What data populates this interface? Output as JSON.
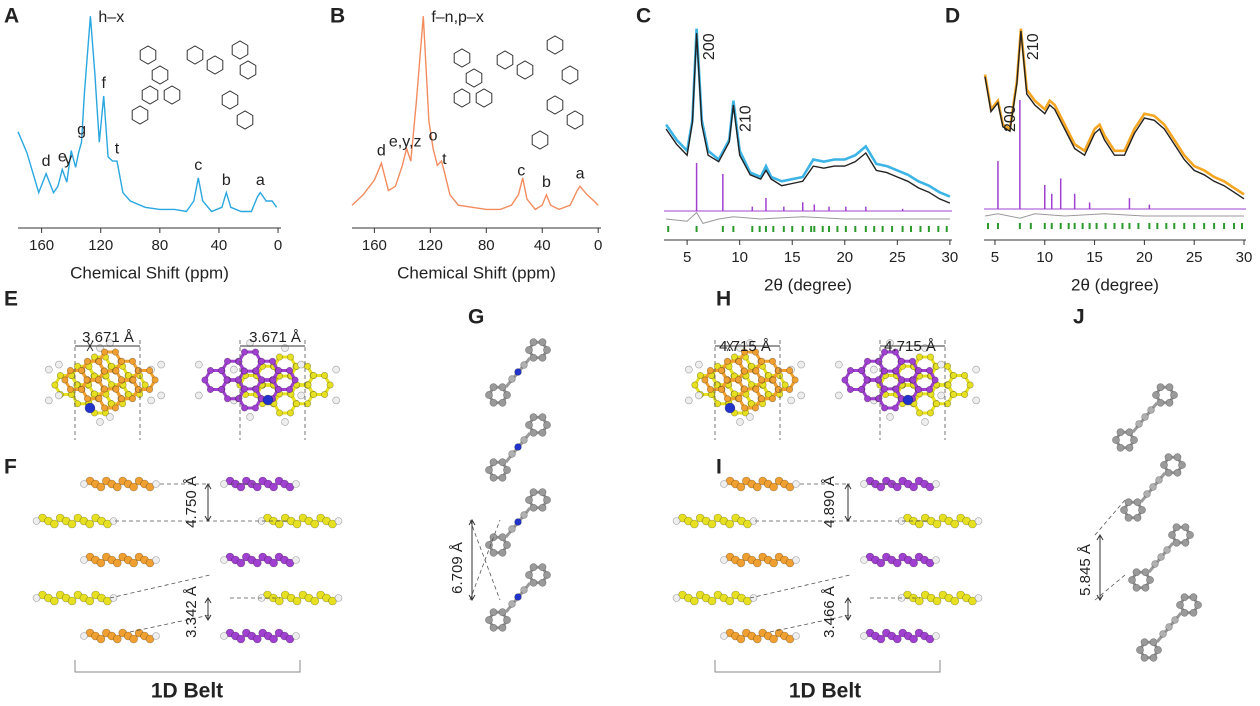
{
  "chart_data": [
    {
      "type": "line",
      "panel": "A",
      "xlabel": "Chemical Shift (ppm)",
      "xlim": [
        176,
        -2
      ],
      "xticks": [
        160,
        120,
        80,
        40,
        0
      ],
      "ylim": [
        0,
        100
      ],
      "series": [
        {
          "color": "#2aa7df",
          "x": [
            176,
            170,
            162,
            157,
            152,
            149,
            146,
            143,
            140,
            137,
            135,
            133,
            131,
            127,
            124,
            121,
            118,
            115,
            112,
            109,
            105,
            100,
            90,
            80,
            70,
            62,
            57,
            54,
            51,
            45,
            38,
            35,
            32,
            25,
            18,
            14,
            12,
            8,
            4,
            1
          ],
          "values": [
            43,
            33,
            14,
            23,
            14,
            17,
            25,
            19,
            34,
            26,
            33,
            38,
            62,
            98,
            71,
            38,
            60,
            31,
            29,
            29,
            14,
            10,
            7,
            6,
            6,
            5,
            10,
            21,
            10,
            5,
            7,
            14,
            7,
            5,
            5,
            12,
            14,
            10,
            10,
            7
          ]
        }
      ],
      "annotations": [
        {
          "text": "d",
          "x": 157
        },
        {
          "text": "e",
          "x": 146
        },
        {
          "text": "y",
          "x": 142
        },
        {
          "text": "g",
          "x": 133
        },
        {
          "text": "h–x",
          "x": 127
        },
        {
          "text": "f",
          "x": 118
        },
        {
          "text": "t",
          "x": 109
        },
        {
          "text": "c",
          "x": 54
        },
        {
          "text": "b",
          "x": 35
        },
        {
          "text": "a",
          "x": 12
        }
      ]
    },
    {
      "type": "line",
      "panel": "B",
      "xlabel": "Chemical Shift (ppm)",
      "xlim": [
        176,
        -2
      ],
      "xticks": [
        160,
        120,
        80,
        40,
        0
      ],
      "ylim": [
        0,
        100
      ],
      "series": [
        {
          "color": "#f28c5f",
          "x": [
            176,
            168,
            160,
            155,
            150,
            145,
            140,
            137,
            134,
            130,
            125,
            121,
            118,
            115,
            112,
            110,
            106,
            100,
            90,
            80,
            70,
            62,
            57,
            54,
            51,
            45,
            40,
            37,
            34,
            28,
            20,
            15,
            13,
            8,
            3,
            0
          ],
          "values": [
            8,
            13,
            20,
            28,
            15,
            17,
            27,
            35,
            29,
            57,
            98,
            48,
            35,
            27,
            29,
            24,
            13,
            8,
            7,
            6,
            6,
            8,
            13,
            21,
            11,
            6,
            8,
            13,
            8,
            6,
            8,
            15,
            17,
            13,
            10,
            8
          ]
        }
      ],
      "annotations": [
        {
          "text": "d",
          "x": 155
        },
        {
          "text": "e,y,z",
          "x": 138
        },
        {
          "text": "f–n,p–x",
          "x": 125
        },
        {
          "text": "o",
          "x": 118
        },
        {
          "text": "t",
          "x": 110
        },
        {
          "text": "c",
          "x": 55
        },
        {
          "text": "b",
          "x": 37
        },
        {
          "text": "a",
          "x": 13
        }
      ]
    },
    {
      "type": "line",
      "panel": "C",
      "xlabel": "2θ (degree)",
      "xlim": [
        2.8,
        30.2
      ],
      "xticks": [
        5,
        10,
        15,
        20,
        25,
        30
      ],
      "ylim": [
        0,
        100
      ],
      "series": [
        {
          "color": "#3cb4e5",
          "x": [
            3,
            4,
            5,
            5.5,
            5.9,
            6.4,
            7,
            8,
            9,
            9.4,
            10,
            11,
            12,
            12.5,
            13,
            14,
            15,
            16,
            17,
            18,
            19,
            20,
            21,
            22,
            23,
            24,
            25,
            26,
            27,
            28,
            29,
            30
          ],
          "values": [
            52,
            45,
            40,
            54,
            96,
            54,
            40,
            36,
            45,
            63,
            40,
            30,
            28,
            33,
            28,
            26,
            27,
            28,
            36,
            35,
            36,
            36,
            38,
            42,
            34,
            33,
            31,
            29,
            26,
            24,
            21,
            19
          ]
        },
        {
          "color": "#222222",
          "x": [
            3,
            4,
            5,
            5.5,
            5.9,
            6.4,
            7,
            8,
            9,
            9.4,
            10,
            11,
            12,
            12.5,
            13,
            14,
            15,
            16,
            17,
            18,
            19,
            20,
            21,
            22,
            23,
            24,
            25,
            26,
            27,
            28,
            29,
            30
          ],
          "values": [
            50,
            43,
            38,
            53,
            94,
            52,
            38,
            35,
            44,
            61,
            38,
            29,
            27,
            31,
            27,
            24,
            25,
            26,
            33,
            32,
            33,
            33,
            35,
            39,
            31,
            30,
            28,
            26,
            23,
            21,
            18,
            16
          ]
        }
      ],
      "sticks": {
        "color": "#a040d0",
        "x": [
          5.9,
          8.4,
          11.2,
          12.5,
          14.2,
          16,
          17.1,
          18.5,
          20.1,
          22,
          25.5
        ],
        "values": [
          22,
          17,
          2,
          6,
          2,
          4,
          3,
          2,
          2,
          2,
          1
        ]
      },
      "difference": {
        "color": "#999999",
        "x": [
          3,
          5,
          5.9,
          6.5,
          8,
          9.4,
          12,
          16,
          20,
          25,
          30
        ],
        "values": [
          0,
          -1,
          3,
          -2,
          0,
          1,
          0,
          1,
          0,
          0,
          0
        ]
      },
      "reflections": {
        "color": "#2a9a2a",
        "x": [
          3.2,
          5.9,
          8.4,
          9.4,
          11.2,
          11.9,
          12.5,
          13.2,
          14.2,
          15,
          16,
          16.8,
          17.1,
          17.9,
          18.5,
          19.3,
          20.1,
          21,
          22,
          22.8,
          23.6,
          24.5,
          25.5,
          26.3,
          27.2,
          28,
          28.9,
          29.7
        ]
      },
      "annotations": [
        {
          "text": "200",
          "x": 5.9
        },
        {
          "text": "210",
          "x": 9.4
        }
      ]
    },
    {
      "type": "line",
      "panel": "D",
      "xlabel": "2θ (degree)",
      "xlim": [
        3.9,
        30.2
      ],
      "xticks": [
        5,
        10,
        15,
        20,
        25,
        30
      ],
      "ylim": [
        0,
        100
      ],
      "series": [
        {
          "color": "#f5a623",
          "x": [
            4,
            4.6,
            5.3,
            5.8,
            6.5,
            7.2,
            7.6,
            8.2,
            9,
            10,
            10.5,
            11,
            12,
            13,
            14,
            15,
            15.5,
            16,
            17,
            18,
            19,
            20,
            21,
            22,
            23,
            24,
            25,
            26,
            27,
            28,
            29,
            30
          ],
          "values": [
            75,
            59,
            63,
            52,
            50,
            72,
            96,
            68,
            63,
            59,
            63,
            61,
            52,
            43,
            40,
            50,
            52,
            47,
            40,
            40,
            50,
            57,
            56,
            52,
            45,
            38,
            33,
            31,
            28,
            26,
            23,
            20
          ]
        },
        {
          "color": "#222222",
          "x": [
            4,
            4.6,
            5.3,
            5.8,
            6.5,
            7.2,
            7.6,
            8.2,
            9,
            10,
            10.5,
            11,
            12,
            13,
            14,
            15,
            15.5,
            16,
            17,
            18,
            19,
            20,
            21,
            22,
            23,
            24,
            25,
            26,
            27,
            28,
            29,
            30
          ],
          "values": [
            74,
            58,
            62,
            51,
            49,
            71,
            95,
            66,
            61,
            57,
            61,
            59,
            50,
            41,
            38,
            48,
            50,
            45,
            38,
            38,
            48,
            55,
            54,
            50,
            43,
            36,
            31,
            29,
            26,
            24,
            21,
            18
          ]
        }
      ],
      "sticks": {
        "color": "#a040d0",
        "x": [
          5.3,
          7.5,
          10,
          10.7,
          11.6,
          13,
          14.5,
          18.5,
          20.5
        ],
        "values": [
          22,
          50,
          11,
          7,
          14,
          7,
          3,
          5,
          2
        ]
      },
      "difference": {
        "color": "#999999",
        "x": [
          4,
          5.3,
          7.5,
          9,
          12,
          16,
          20,
          25,
          30
        ],
        "values": [
          0,
          1,
          -1,
          1,
          0,
          1,
          0,
          0,
          0
        ]
      },
      "reflections": {
        "color": "#2a9a2a",
        "x": [
          4.3,
          5.3,
          7.5,
          8.6,
          10,
          10.7,
          11.6,
          12.4,
          13,
          13.8,
          14.5,
          15.2,
          16.1,
          17,
          17.8,
          18.5,
          19.4,
          20.5,
          21.3,
          22.2,
          23,
          24,
          25,
          26,
          27,
          28,
          29,
          29.8
        ]
      },
      "annotations": [
        {
          "text": "200",
          "x": 5.3
        },
        {
          "text": "210",
          "x": 7.6
        }
      ]
    }
  ],
  "structures": [
    {
      "panel": "E",
      "distances": [
        "3.671 Å",
        "3.671 Å"
      ]
    },
    {
      "panel": "F",
      "distances": [
        "4.750 Å",
        "3.342 Å"
      ],
      "caption": "1D Belt"
    },
    {
      "panel": "G",
      "distances": [
        "6.709 Å"
      ]
    },
    {
      "panel": "H",
      "distances": [
        "4.715 Å",
        "4.715 Å"
      ]
    },
    {
      "panel": "I",
      "distances": [
        "4.890 Å",
        "3.466 Å"
      ],
      "caption": "1D Belt"
    },
    {
      "panel": "J",
      "distances": [
        "5.845 Å"
      ]
    }
  ]
}
